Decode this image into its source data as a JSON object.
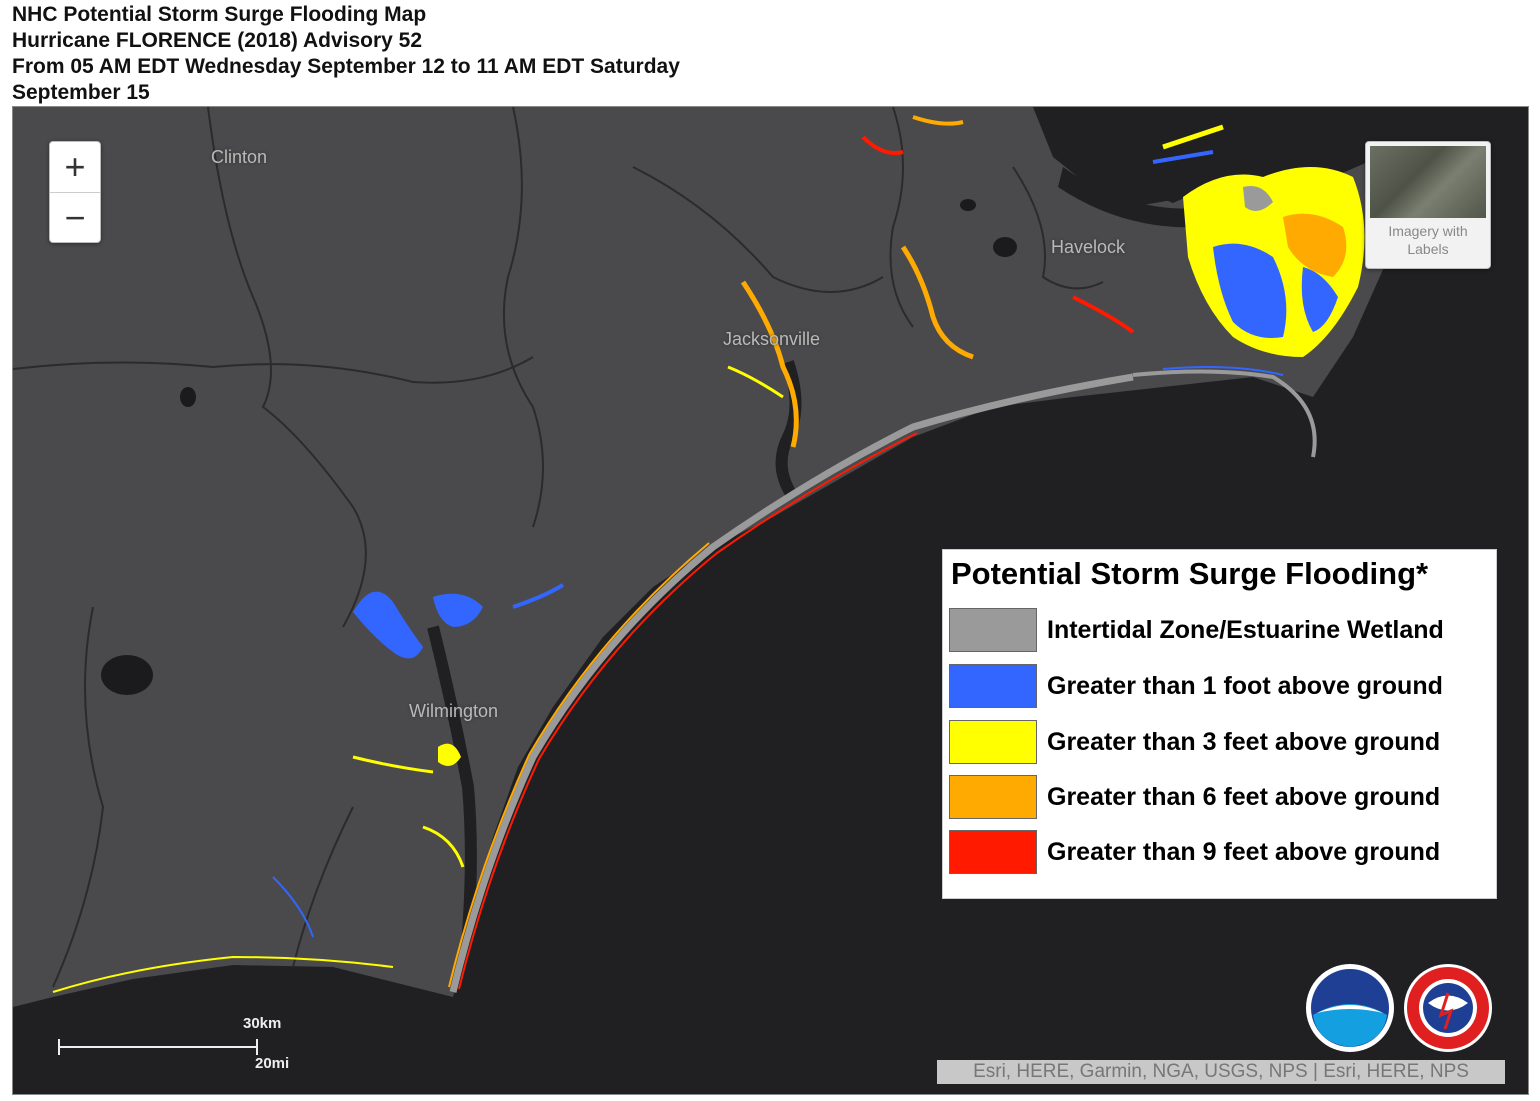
{
  "header": {
    "line1": "NHC Potential Storm Surge Flooding Map",
    "line2": "Hurricane FLORENCE (2018) Advisory 52",
    "line3": "From 05 AM EDT Wednesday September 12 to 11 AM EDT Saturday",
    "line4": "September 15"
  },
  "zoom": {
    "in": "+",
    "out": "−"
  },
  "cities": {
    "clinton": "Clinton",
    "havelock": "Havelock",
    "jacksonville": "Jacksonville",
    "wilmington": "Wilmington"
  },
  "basemap_toggle": {
    "label": "Imagery with Labels"
  },
  "legend": {
    "title": "Potential Storm Surge Flooding*",
    "items": [
      {
        "label": "Intertidal Zone/Estuarine Wetland",
        "color": "#9a9a9a"
      },
      {
        "label": "Greater than 1 foot above ground",
        "color": "#3366ff"
      },
      {
        "label": "Greater than 3 feet above ground",
        "color": "#ffff00"
      },
      {
        "label": "Greater than 6 feet above ground",
        "color": "#ffaa00"
      },
      {
        "label": "Greater than 9 feet above ground",
        "color": "#ff1a00"
      }
    ]
  },
  "scale": {
    "km": "30km",
    "mi": "20mi"
  },
  "attribution": "Esri, HERE, Garmin, NGA, USGS, NPS | Esri, HERE, NPS",
  "colors": {
    "land": "#4a4a4c",
    "water": "#202023",
    "boundary": "#2a2a2a"
  },
  "logos": {
    "noaa": "noaa-logo",
    "nws": "national-weather-service-logo"
  }
}
